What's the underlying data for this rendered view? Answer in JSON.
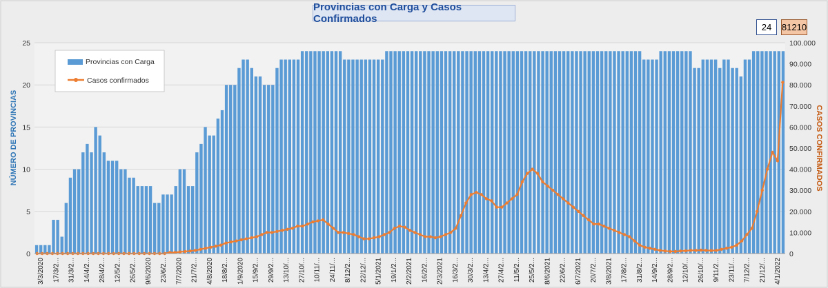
{
  "chart_title": "Provincias con Carga y Casos Confirmados",
  "badges": {
    "provinces": "24",
    "cases": "81210"
  },
  "colors": {
    "bars": "#5b9bd5",
    "line": "#ed7d31",
    "left_axis_title": "#2e75b6",
    "right_axis_title": "#c55a11"
  },
  "chart_data": {
    "type": "bar+line",
    "title": "Provincias con Carga y Casos Confirmados",
    "ylabel": "NÚMERO DE PROVINCIAS",
    "y2label": "CASOS CONFIRMADOS",
    "ylim": [
      0,
      25
    ],
    "y2lim": [
      0,
      100000
    ],
    "yticks": [
      "0",
      "5",
      "10",
      "15",
      "20",
      "25"
    ],
    "y2ticks": [
      "0",
      "10.000",
      "20.000",
      "30.000",
      "40.000",
      "50.000",
      "60.000",
      "70.000",
      "80.000",
      "90.000",
      "100.000"
    ],
    "xticks": [
      "3/3/2020",
      "17/3/2...",
      "31/3/2...",
      "14/4/2...",
      "28/4/2...",
      "12/5/2...",
      "26/5/2...",
      "9/6/2020",
      "23/6/2...",
      "7/7/2020",
      "21/7/2...",
      "4/8/2020",
      "18/8/2...",
      "1/9/2020",
      "15/9/2...",
      "29/9/2...",
      "13/10/...",
      "27/10/...",
      "10/11/...",
      "24/11/...",
      "8/12/2...",
      "22/12/...",
      "5/1/2021",
      "19/1/2...",
      "2/2/2021",
      "16/2/2...",
      "2/3/2021",
      "16/3/2...",
      "30/3/2...",
      "13/4/2...",
      "27/4/2...",
      "11/5/2...",
      "25/5/2...",
      "8/6/2021",
      "22/6/2...",
      "6/7/2021",
      "20/7/2...",
      "3/8/2021",
      "17/8/2...",
      "31/8/2...",
      "14/9/2...",
      "28/9/2...",
      "12/10/...",
      "26/10/...",
      "9/11/2...",
      "23/11/...",
      "7/12/2...",
      "21/12/...",
      "4/1/2022"
    ],
    "legend": {
      "position": "top-left",
      "entries": [
        "Provincias con Carga",
        "Casos confirmados"
      ]
    },
    "series": [
      {
        "name": "Provincias con Carga",
        "type": "bar",
        "axis": "left",
        "values": [
          1,
          1,
          1,
          1,
          4,
          4,
          2,
          6,
          9,
          10,
          10,
          12,
          13,
          12,
          15,
          14,
          12,
          11,
          11,
          11,
          10,
          10,
          9,
          9,
          8,
          8,
          8,
          8,
          6,
          6,
          7,
          7,
          7,
          8,
          10,
          10,
          8,
          8,
          12,
          13,
          15,
          14,
          14,
          16,
          17,
          20,
          20,
          20,
          22,
          23,
          23,
          22,
          21,
          21,
          20,
          20,
          20,
          22,
          23,
          23,
          23,
          23,
          23,
          24,
          24,
          24,
          24,
          24,
          24,
          24,
          24,
          24,
          24,
          23,
          23,
          23,
          23,
          23,
          23,
          23,
          23,
          23,
          23,
          24,
          24,
          24,
          24,
          24,
          24,
          24,
          24,
          24,
          24,
          24,
          24,
          24,
          24,
          24,
          24,
          24,
          24,
          24,
          24,
          24,
          24,
          24,
          24,
          24,
          24,
          24,
          24,
          24,
          24,
          24,
          24,
          24,
          24,
          24,
          24,
          24,
          24,
          24,
          24,
          24,
          24,
          24,
          24,
          24,
          24,
          24,
          24,
          24,
          24,
          24,
          24,
          24,
          24,
          24,
          24,
          24,
          24,
          24,
          24,
          24,
          23,
          23,
          23,
          23,
          24,
          24,
          24,
          24,
          24,
          24,
          24,
          24,
          22,
          22,
          23,
          23,
          23,
          23,
          22,
          23,
          23,
          22,
          22,
          21,
          23,
          23,
          24,
          24,
          24,
          24,
          24,
          24,
          24,
          24
        ]
      },
      {
        "name": "Casos confirmados",
        "type": "line",
        "axis": "right",
        "values": [
          0,
          0,
          0,
          0,
          0,
          0,
          0,
          0,
          0,
          0,
          0,
          0,
          0,
          0,
          0,
          0,
          0,
          0,
          0,
          0,
          0,
          0,
          0,
          0,
          0,
          0,
          500,
          500,
          800,
          1000,
          1200,
          1500,
          2000,
          2500,
          3000,
          3500,
          4000,
          5000,
          5500,
          6000,
          6500,
          7000,
          7500,
          8000,
          9000,
          10000,
          10000,
          10500,
          11000,
          11500,
          12000,
          13000,
          13000,
          14000,
          15000,
          15500,
          16000,
          14000,
          12000,
          10000,
          10000,
          9500,
          9000,
          8000,
          7000,
          7000,
          7500,
          8000,
          9000,
          10000,
          12000,
          13000,
          12500,
          11000,
          10000,
          9000,
          8000,
          8000,
          7500,
          8000,
          9000,
          10000,
          12000,
          18000,
          24000,
          28000,
          29000,
          28000,
          26000,
          25000,
          22000,
          22000,
          24000,
          26000,
          28000,
          34000,
          38000,
          40000,
          38000,
          34000,
          32000,
          30000,
          28000,
          26000,
          24000,
          22000,
          20000,
          18000,
          16000,
          14000,
          14000,
          13000,
          12000,
          11000,
          10000,
          9000,
          8000,
          6000,
          4000,
          3000,
          2500,
          2000,
          1500,
          1200,
          1000,
          1000,
          1200,
          1300,
          1500,
          1500,
          1600,
          1500,
          1400,
          1500,
          2000,
          2500,
          3000,
          4000,
          6000,
          9000,
          12000,
          20000,
          30000,
          40000,
          48000,
          44000,
          81210
        ]
      }
    ]
  }
}
